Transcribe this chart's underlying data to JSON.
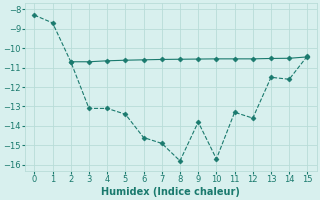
{
  "line1_x": [
    0,
    1,
    2,
    3,
    4,
    5,
    6,
    7,
    8,
    9,
    10,
    11,
    12,
    13,
    14,
    15
  ],
  "line1_y": [
    -8.3,
    -8.7,
    -10.7,
    -13.1,
    -13.1,
    -13.4,
    -14.6,
    -14.9,
    -15.8,
    -13.8,
    -15.7,
    -13.3,
    -13.6,
    -11.5,
    -11.6,
    -10.4
  ],
  "line2_x": [
    2,
    3,
    4,
    5,
    6,
    7,
    8,
    9,
    10,
    11,
    12,
    13,
    14,
    15
  ],
  "line2_y": [
    -10.7,
    -10.7,
    -10.65,
    -10.62,
    -10.6,
    -10.58,
    -10.57,
    -10.56,
    -10.55,
    -10.55,
    -10.55,
    -10.53,
    -10.52,
    -10.45
  ],
  "color": "#1a7a6e",
  "bgcolor": "#d8f0ee",
  "grid_color": "#b8dcd8",
  "xlabel": "Humidex (Indice chaleur)",
  "xlim": [
    -0.5,
    15.5
  ],
  "ylim": [
    -16.3,
    -7.7
  ],
  "yticks": [
    -8,
    -9,
    -10,
    -11,
    -12,
    -13,
    -14,
    -15,
    -16
  ],
  "xticks": [
    0,
    1,
    2,
    3,
    4,
    5,
    6,
    7,
    8,
    9,
    10,
    11,
    12,
    13,
    14,
    15
  ],
  "xlabel_fontsize": 7,
  "tick_fontsize": 6
}
